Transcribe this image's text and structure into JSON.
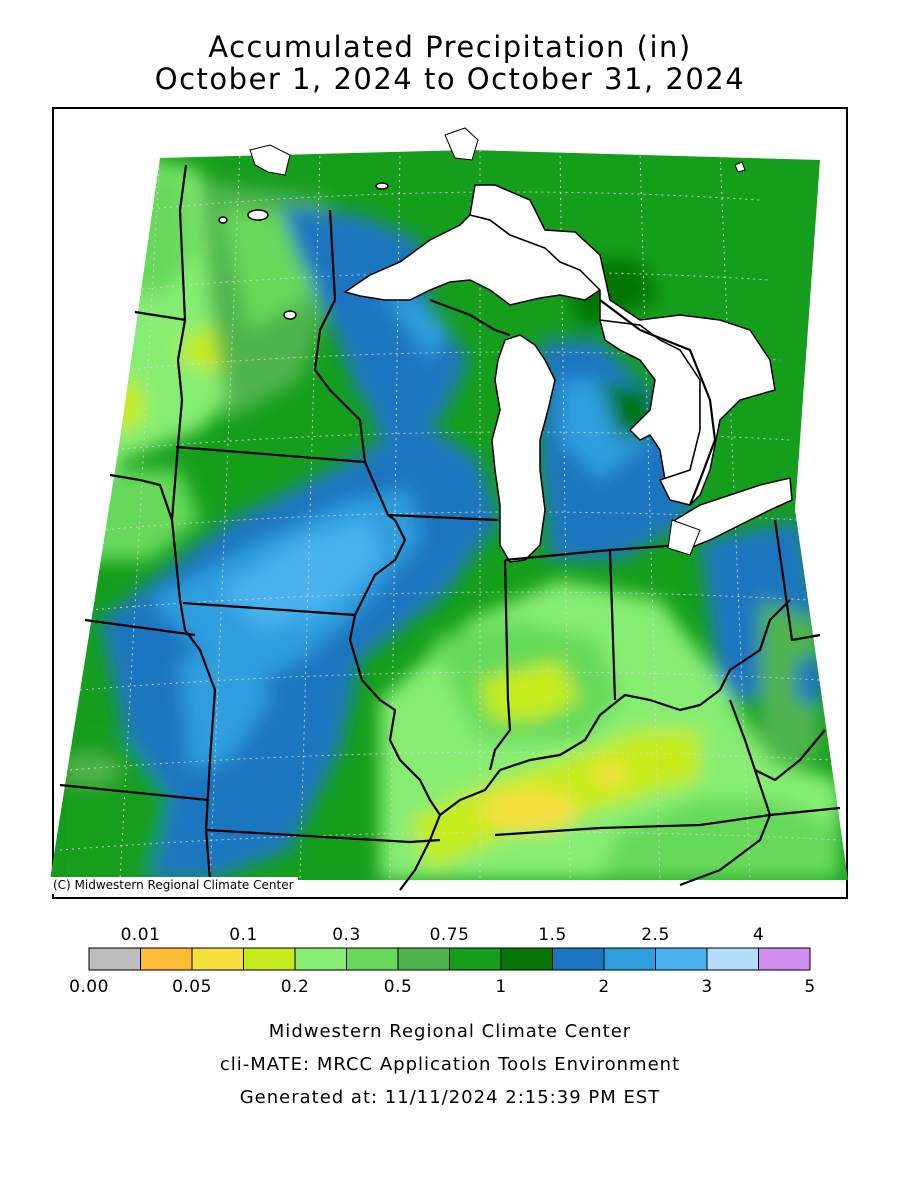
{
  "title_line1": "Accumulated Precipitation (in)",
  "title_line2": "October 1, 2024 to October 31, 2024",
  "credit": "(C) Midwestern Regional Climate Center",
  "legend": {
    "top_labels": [
      "0.01",
      "0.1",
      "0.3",
      "0.75",
      "1.5",
      "2.5",
      "4"
    ],
    "bottom_labels": [
      "0.00",
      "0.05",
      "0.2",
      "0.5",
      "1",
      "2",
      "3",
      "5"
    ],
    "colors": [
      "#bdbdbd",
      "#ffbb33",
      "#f5e03c",
      "#c6ec1e",
      "#86ed72",
      "#66d95a",
      "#4fb44d",
      "#159e1c",
      "#067606",
      "#1a76bf",
      "#2f9ede",
      "#49b2ef",
      "#b6dcfb",
      "#d08eef"
    ]
  },
  "footer": {
    "line1": "Midwestern Regional Climate Center",
    "line2": "cli-MATE: MRCC Application Tools Environment",
    "line3": "Generated at: 11/11/2024 2:15:39 PM EST"
  },
  "colors": {
    "lake": "#ffffff",
    "border": "#000000",
    "grid": "#d9d9d9"
  }
}
